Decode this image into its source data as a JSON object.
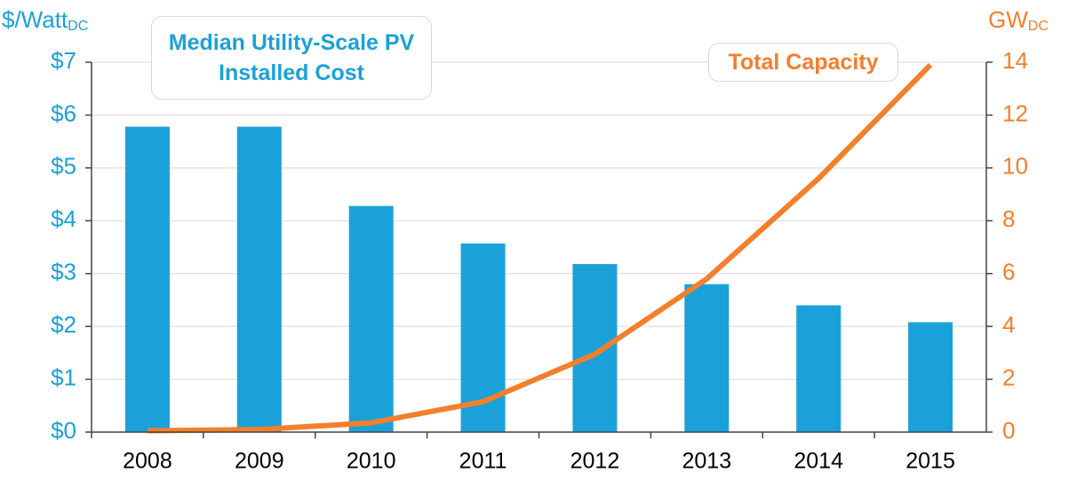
{
  "chart_data": {
    "type": "bar_line",
    "y_label": "$/Watt",
    "y_label_sub": "DC",
    "y2_label": "GW",
    "y2_label_sub": "DC",
    "categories": [
      "2008",
      "2009",
      "2010",
      "2011",
      "2012",
      "2013",
      "2014",
      "2015"
    ],
    "series": [
      {
        "name": "Median Utility-Scale PV Installed Cost",
        "type": "bar",
        "color": "#1ba1d9",
        "axis": "y",
        "values": [
          5.78,
          5.78,
          4.28,
          3.57,
          3.18,
          2.8,
          2.4,
          2.08
        ]
      },
      {
        "name": "Total Capacity",
        "type": "line",
        "color": "#f47f2a",
        "axis": "y2",
        "values": [
          0.05,
          0.1,
          0.35,
          1.15,
          2.95,
          5.8,
          9.6,
          13.9
        ]
      }
    ],
    "ylim": [
      0,
      7
    ],
    "yticks": [
      {
        "value": 0,
        "label": "$0"
      },
      {
        "value": 1,
        "label": "$1"
      },
      {
        "value": 2,
        "label": "$2"
      },
      {
        "value": 3,
        "label": "$3"
      },
      {
        "value": 4,
        "label": "$4"
      },
      {
        "value": 5,
        "label": "$5"
      },
      {
        "value": 6,
        "label": "$6"
      },
      {
        "value": 7,
        "label": "$7"
      }
    ],
    "y2lim": [
      0,
      14
    ],
    "y2ticks": [
      0,
      2,
      4,
      6,
      8,
      10,
      12,
      14
    ],
    "grid": true
  }
}
